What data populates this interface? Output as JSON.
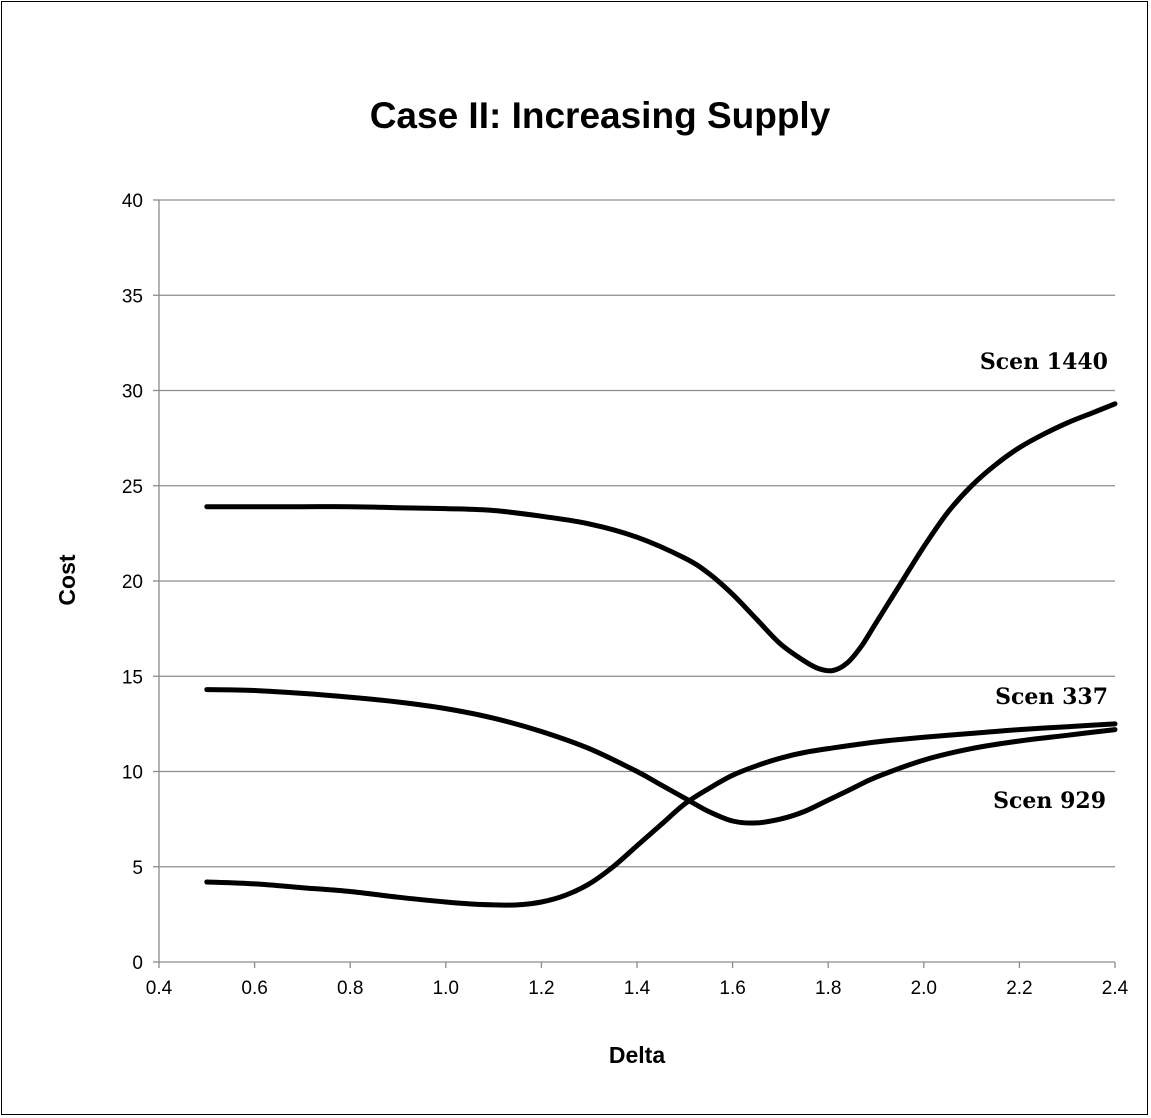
{
  "chart_data": {
    "type": "line",
    "title": "Case II: Increasing Supply",
    "xlabel": "Delta",
    "ylabel": "Cost",
    "xlim": [
      0.4,
      2.4
    ],
    "ylim": [
      0,
      40
    ],
    "x_ticks": [
      "0.4",
      "0.6",
      "0.8",
      "1.0",
      "1.2",
      "1.4",
      "1.6",
      "1.8",
      "2.0",
      "2.2",
      "2.4"
    ],
    "y_ticks": [
      "0",
      "5",
      "10",
      "15",
      "20",
      "25",
      "30",
      "35",
      "40"
    ],
    "grid": true,
    "legend": "none",
    "line_color": "#000000",
    "series": [
      {
        "name": "Scen 1440",
        "x": [
          0.5,
          0.6,
          0.7,
          0.8,
          0.9,
          1.0,
          1.1,
          1.2,
          1.3,
          1.4,
          1.5,
          1.55,
          1.6,
          1.65,
          1.7,
          1.75,
          1.78,
          1.81,
          1.84,
          1.87,
          1.9,
          1.95,
          2.0,
          2.05,
          2.1,
          2.15,
          2.2,
          2.25,
          2.3,
          2.35,
          2.4
        ],
        "y": [
          23.9,
          23.9,
          23.9,
          23.9,
          23.85,
          23.8,
          23.7,
          23.4,
          23.0,
          22.3,
          21.2,
          20.4,
          19.3,
          18.0,
          16.7,
          15.8,
          15.4,
          15.3,
          15.7,
          16.6,
          17.8,
          19.8,
          21.8,
          23.6,
          25.0,
          26.1,
          27.0,
          27.7,
          28.3,
          28.8,
          29.3
        ]
      },
      {
        "name": "Scen 337",
        "x": [
          0.5,
          0.6,
          0.7,
          0.8,
          0.9,
          1.0,
          1.05,
          1.1,
          1.15,
          1.2,
          1.25,
          1.3,
          1.35,
          1.4,
          1.45,
          1.5,
          1.55,
          1.6,
          1.65,
          1.7,
          1.75,
          1.8,
          1.9,
          2.0,
          2.1,
          2.2,
          2.3,
          2.4
        ],
        "y": [
          4.2,
          4.1,
          3.9,
          3.7,
          3.4,
          3.15,
          3.05,
          3.0,
          3.0,
          3.15,
          3.5,
          4.1,
          5.0,
          6.1,
          7.2,
          8.3,
          9.1,
          9.8,
          10.3,
          10.7,
          11.0,
          11.2,
          11.55,
          11.8,
          12.0,
          12.2,
          12.35,
          12.5
        ]
      },
      {
        "name": "Scen 929",
        "x": [
          0.5,
          0.6,
          0.7,
          0.8,
          0.9,
          1.0,
          1.1,
          1.2,
          1.3,
          1.4,
          1.45,
          1.5,
          1.55,
          1.6,
          1.65,
          1.7,
          1.75,
          1.8,
          1.85,
          1.9,
          2.0,
          2.1,
          2.2,
          2.3,
          2.4
        ],
        "y": [
          14.3,
          14.25,
          14.1,
          13.9,
          13.65,
          13.3,
          12.8,
          12.1,
          11.2,
          10.0,
          9.3,
          8.6,
          7.9,
          7.4,
          7.3,
          7.5,
          7.9,
          8.5,
          9.1,
          9.7,
          10.6,
          11.2,
          11.6,
          11.9,
          12.2
        ]
      }
    ]
  }
}
